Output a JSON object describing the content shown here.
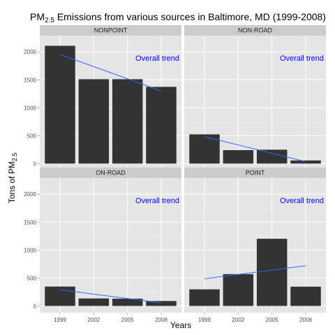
{
  "chart_data": {
    "type": "bar",
    "title": {
      "main": "PM",
      "sub": "2.5",
      "rest": " Emissions from various sources in Baltimore, MD (1999-2008)"
    },
    "xlabel": "Years",
    "ylabel": {
      "main": "Tons of PM",
      "sub": "2.5"
    },
    "categories": [
      "1999",
      "2002",
      "2005",
      "2008"
    ],
    "y_ticks": [
      0,
      500,
      1000,
      1500,
      2000
    ],
    "ylim": [
      -120,
      2290
    ],
    "grid": true,
    "annotation": "Overall trend",
    "colors": {
      "panel_bg": "#e5e5e5",
      "strip_bg": "#cccccc",
      "grid_major": "#ffffff",
      "grid_minor": "#f2f2f2",
      "bar": "#333333",
      "trend": "#3366ff",
      "annotation": "#0000ff"
    },
    "panels": [
      {
        "name": "NONPOINT",
        "values": [
          2107.6,
          1509.5,
          1509.5,
          1373.2
        ],
        "trend": [
          1952,
          1300
        ]
      },
      {
        "name": "NON-ROAD",
        "values": [
          522.9,
          240.8,
          248.9,
          55.8
        ],
        "trend": [
          482,
          35
        ]
      },
      {
        "name": "ON-ROAD",
        "values": [
          346.8,
          134.3,
          130.4,
          88.3
        ],
        "trend": [
          290,
          55
        ]
      },
      {
        "name": "POINT",
        "values": [
          296.8,
          569.3,
          1202.5,
          344.98
        ],
        "trend": [
          485,
          720
        ]
      }
    ]
  }
}
